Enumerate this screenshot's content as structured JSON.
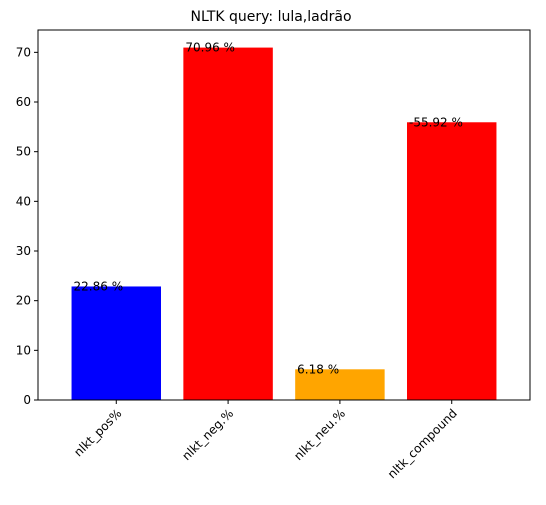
{
  "chart_data": {
    "type": "bar",
    "title": "NLTK query: lula,ladrão",
    "xlabel": "",
    "ylabel": "",
    "categories": [
      "nlkt_pos%",
      "nlkt_neg.%",
      "nlkt_neu.%",
      "nltk_compound"
    ],
    "values": [
      22.86,
      70.96,
      6.18,
      55.92
    ],
    "data_labels": [
      "22.86 %",
      "70.96 %",
      "6.18 %",
      "-55.92 %"
    ],
    "bar_colors": [
      "#0000ff",
      "#ff0000",
      "#ffa500",
      "#ff0000"
    ],
    "ylim": [
      0,
      74.5
    ],
    "yticks": [
      0,
      10,
      20,
      30,
      40,
      50,
      60,
      70
    ],
    "grid": false,
    "legend": "none",
    "xtick_rotation_deg": 45
  }
}
